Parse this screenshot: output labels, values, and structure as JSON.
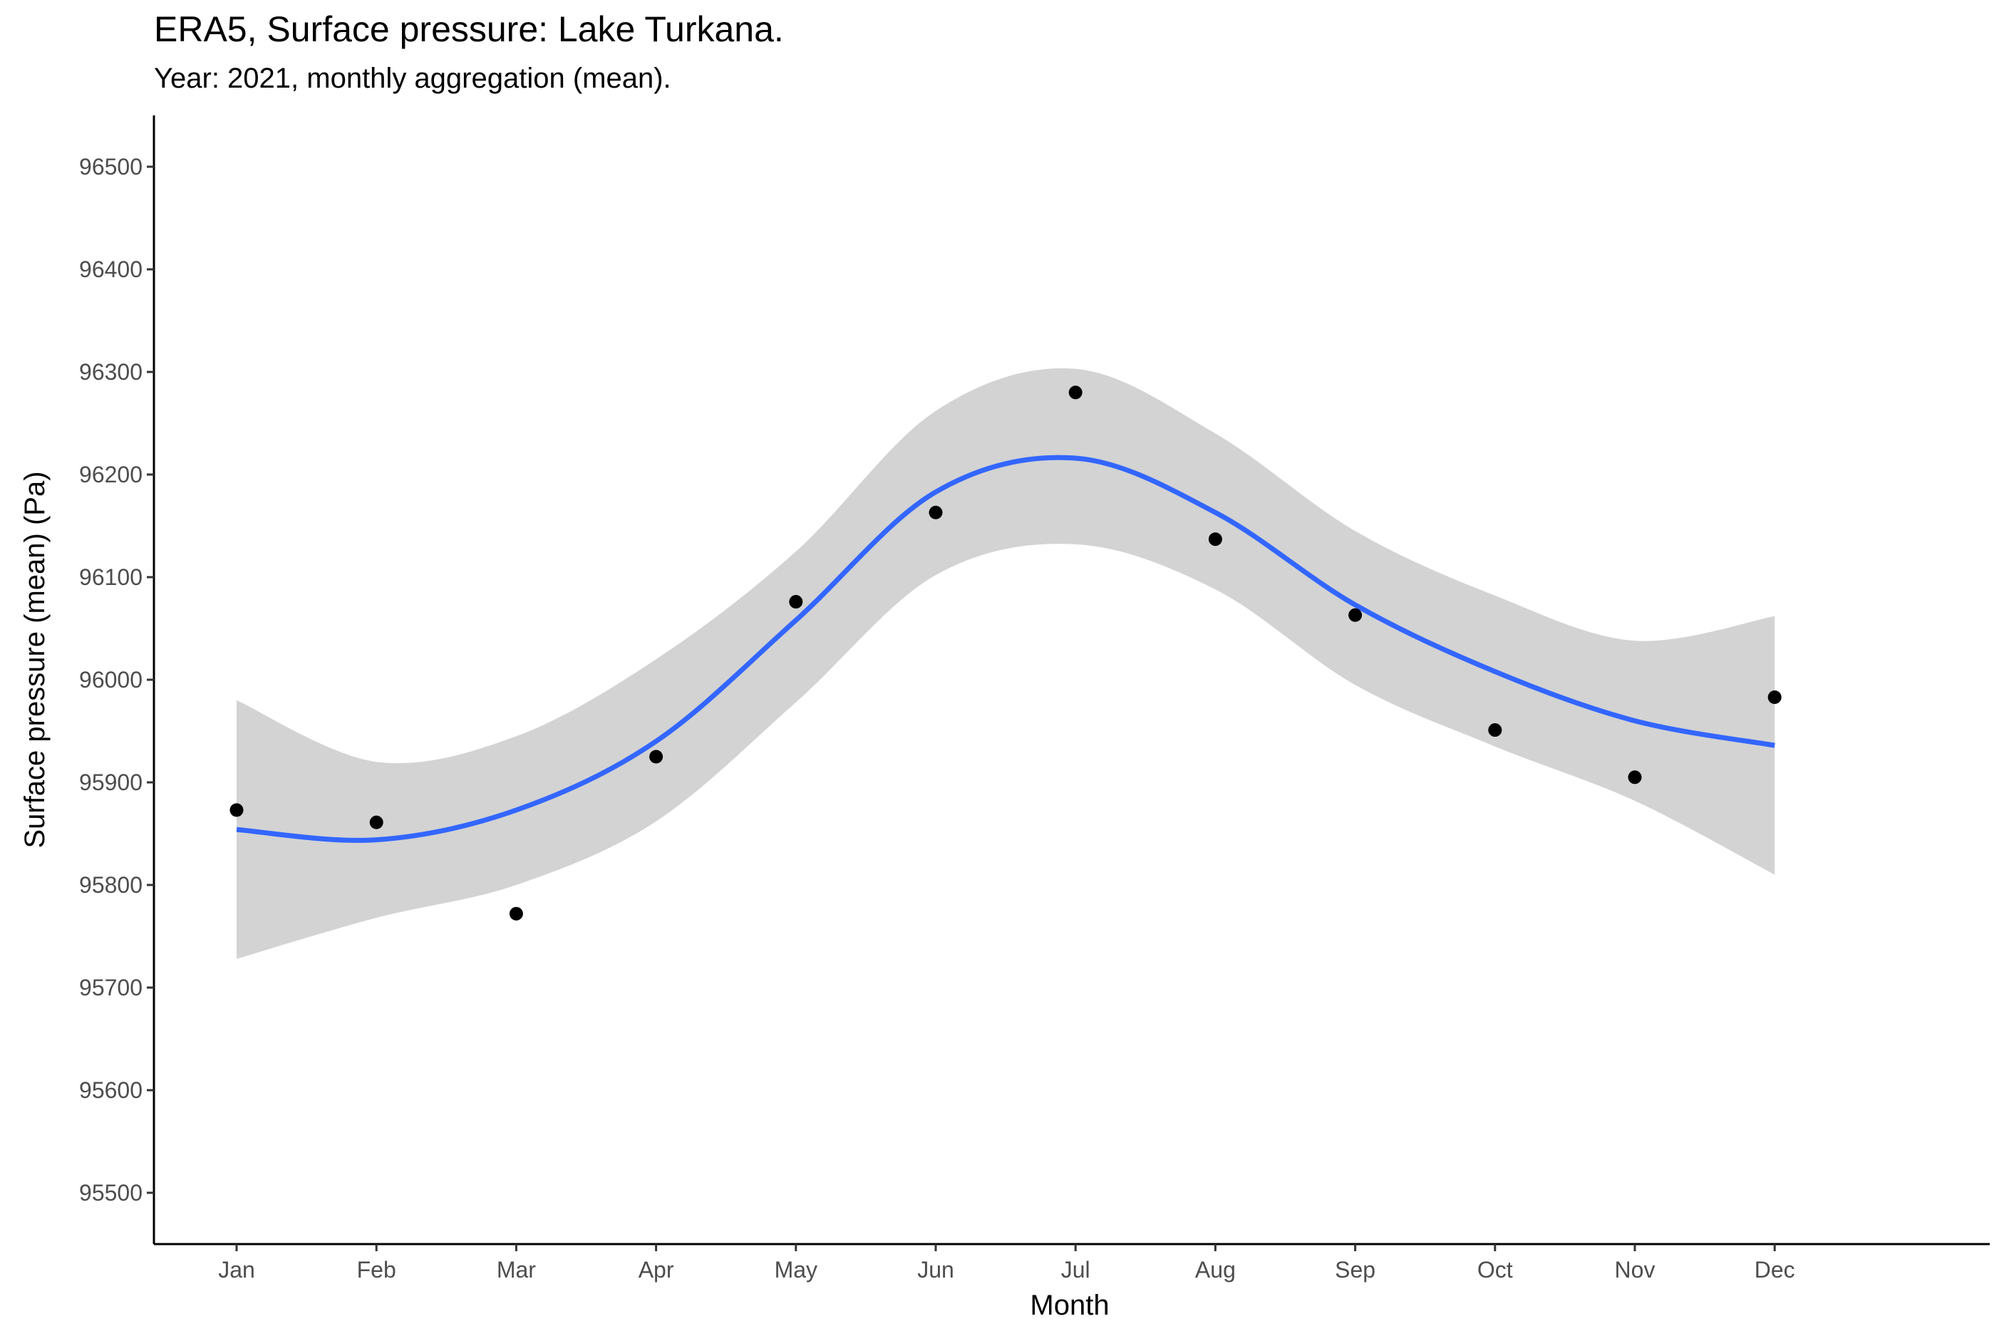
{
  "chart_data": {
    "type": "scatter",
    "title": "ERA5, Surface pressure: Lake Turkana.",
    "subtitle": "Year: 2021, monthly aggregation (mean).",
    "xlabel": "Month",
    "ylabel": "Surface pressure (mean) (Pa)",
    "categories": [
      "Jan",
      "Feb",
      "Mar",
      "Apr",
      "May",
      "Jun",
      "Jul",
      "Aug",
      "Sep",
      "Oct",
      "Nov",
      "Dec"
    ],
    "ylim": [
      95450,
      96550
    ],
    "yticks": [
      95500,
      95600,
      95700,
      95800,
      95900,
      96000,
      96100,
      96200,
      96300,
      96400,
      96500
    ],
    "grid": false,
    "legend": "none",
    "series": [
      {
        "values": [
          95873,
          95861,
          95772,
          95925,
          96076,
          96163,
          96280,
          96137,
          96063,
          95951,
          95905,
          95983
        ]
      }
    ],
    "smooth": {
      "method": "loess",
      "fit": [
        95854,
        95844,
        95873,
        95940,
        96058,
        96183,
        96216,
        96163,
        96073,
        96008,
        95960,
        95936
      ],
      "upper": [
        95980,
        95920,
        95945,
        96020,
        96125,
        96262,
        96303,
        96240,
        96145,
        96082,
        96038,
        96062
      ],
      "lower": [
        95728,
        95768,
        95800,
        95862,
        95978,
        96102,
        96132,
        96088,
        95995,
        95935,
        95882,
        95810
      ]
    },
    "colors": {
      "points": "#000000",
      "smooth_line": "#3366FF",
      "ribbon": "#D3D3D3",
      "axis": "#000000",
      "tick_labels": "#4D4D4D"
    }
  }
}
